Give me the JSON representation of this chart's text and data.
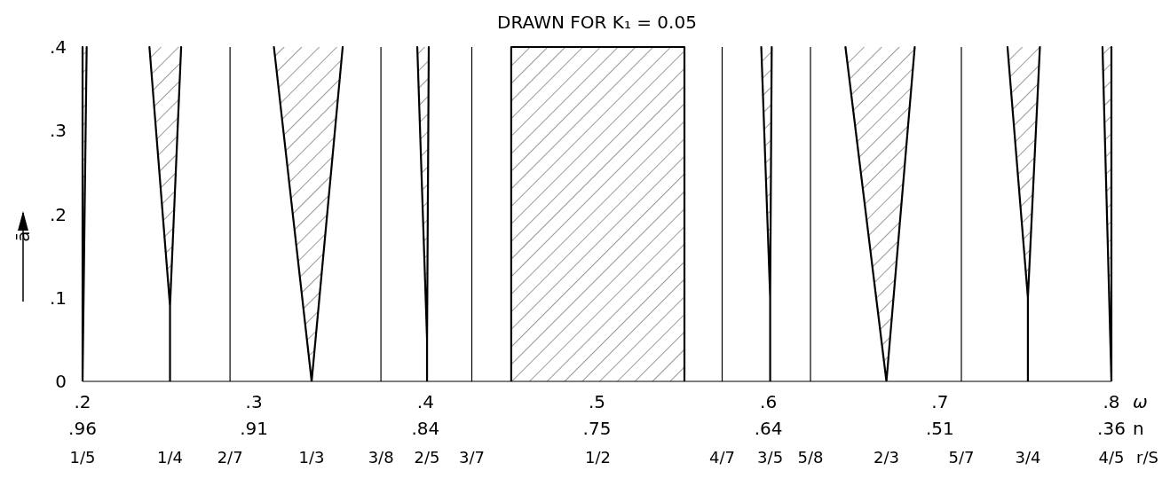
{
  "chart_data": {
    "type": "area",
    "title": "DRAWN FOR K₁ = 0.05",
    "xlabel": "ω",
    "ylabel": "ā",
    "xlim": [
      0.2,
      0.8
    ],
    "xticks": [
      {
        "value": 0.2,
        "label": ".2"
      },
      {
        "value": 0.3,
        "label": ".3"
      },
      {
        "value": 0.4,
        "label": ".4"
      },
      {
        "value": 0.5,
        "label": ".5"
      },
      {
        "value": 0.6,
        "label": ".6"
      },
      {
        "value": 0.7,
        "label": ".7"
      },
      {
        "value": 0.8,
        "label": ".8"
      }
    ],
    "ylim": [
      0,
      0.4
    ],
    "yticks": [
      {
        "value": 0,
        "label": "0"
      },
      {
        "value": 0.1,
        "label": ".1"
      },
      {
        "value": 0.2,
        "label": ".2"
      },
      {
        "value": 0.3,
        "label": ".3"
      },
      {
        "value": 0.4,
        "label": ".4"
      }
    ],
    "grid": false,
    "series": [
      {
        "color": "#000000",
        "x": [
          0.2,
          0.2,
          0.2024
        ],
        "values": [
          0.4,
          0,
          0.4
        ]
      },
      {
        "color": "#000000",
        "x": [
          0.239,
          0.251,
          0.251,
          0.251,
          0.2575
        ],
        "values": [
          0.4,
          0.09,
          0,
          0.09,
          0.4
        ]
      },
      {
        "color": "#000000",
        "x": [
          0.3116,
          0.3336,
          0.3517
        ],
        "values": [
          0.4,
          0,
          0.4
        ]
      },
      {
        "color": "#000000",
        "x": [
          0.3952,
          0.4009,
          0.4009,
          0.4009,
          0.4019
        ],
        "values": [
          0.4,
          0.05,
          0,
          0.05,
          0.4
        ]
      },
      {
        "color": "#000000",
        "x": [
          0.45,
          0.45,
          0.551,
          0.551
        ],
        "values": [
          0,
          0.4,
          0.4,
          0
        ]
      },
      {
        "color": "#000000",
        "x": [
          0.5958,
          0.601,
          0.601,
          0.601,
          0.6019
        ],
        "values": [
          0.4,
          0.1,
          0,
          0.1,
          0.4
        ]
      },
      {
        "color": "#000000",
        "x": [
          0.6449,
          0.6688,
          0.6853
        ],
        "values": [
          0.4,
          0,
          0.4
        ]
      },
      {
        "color": "#000000",
        "x": [
          0.7394,
          0.7513,
          0.7513,
          0.7513,
          0.7583
        ],
        "values": [
          0.4,
          0.1,
          0,
          0.1,
          0.4
        ]
      },
      {
        "color": "#000000",
        "x": [
          0.7948,
          0.8,
          0.8
        ],
        "values": [
          0.4,
          0,
          0.4
        ]
      }
    ],
    "ref_lines": [
      {
        "axis": "x",
        "value": 0.286
      },
      {
        "axis": "x",
        "value": 0.374
      },
      {
        "axis": "x",
        "value": 0.427
      },
      {
        "axis": "x",
        "value": 0.573
      },
      {
        "axis": "x",
        "value": 0.6245
      },
      {
        "axis": "x",
        "value": 0.7125
      }
    ],
    "annotations": [
      ".96",
      ".91",
      ".84",
      ".75",
      ".64",
      ".51",
      ".36",
      "n",
      "1/5",
      "1/4",
      "2/7",
      "1/3",
      "3/8",
      "2/5",
      "3/7",
      "1/2",
      "4/7",
      "3/5",
      "5/8",
      "2/3",
      "5/7",
      "3/4",
      "4/5",
      "r/S"
    ]
  }
}
